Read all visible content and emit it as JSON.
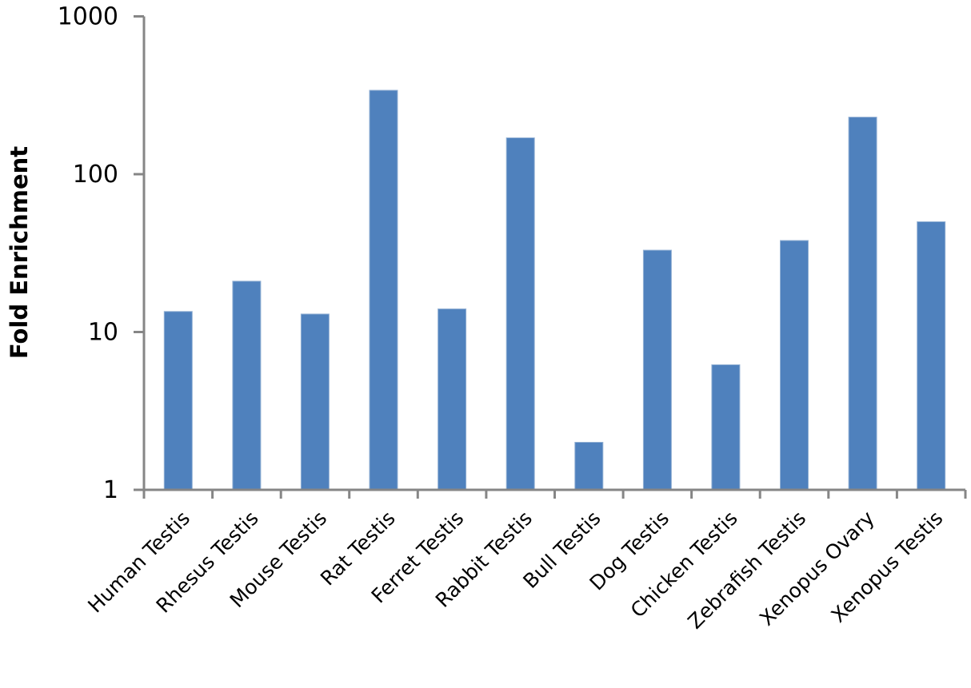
{
  "chart_data": {
    "type": "bar",
    "title": "",
    "xlabel": "",
    "ylabel": "Fold Enrichment",
    "yscale": "log",
    "ylim": [
      1,
      1000
    ],
    "ytick_values": [
      1,
      10,
      100,
      1000
    ],
    "ytick_labels": [
      "1",
      "10",
      "100",
      "1000"
    ],
    "grid": "off",
    "legend": "none",
    "categories": [
      "Human Testis",
      "Rhesus Testis",
      "Mouse Testis",
      "Rat Testis",
      "Ferret Testis",
      "Rabbit Testis",
      "Bull Testis",
      "Dog Testis",
      "Chicken Testis",
      "Zebrafish Testis",
      "Xenopus Ovary",
      "Xenopus Testis"
    ],
    "values": [
      13.5,
      21,
      13,
      340,
      14,
      170,
      2,
      33,
      6.2,
      38,
      230,
      50
    ],
    "bar_color": "#4F81BD",
    "bar_edge_color": "#93B1D4",
    "axis_color": "#868686",
    "text_color": "#000000"
  }
}
